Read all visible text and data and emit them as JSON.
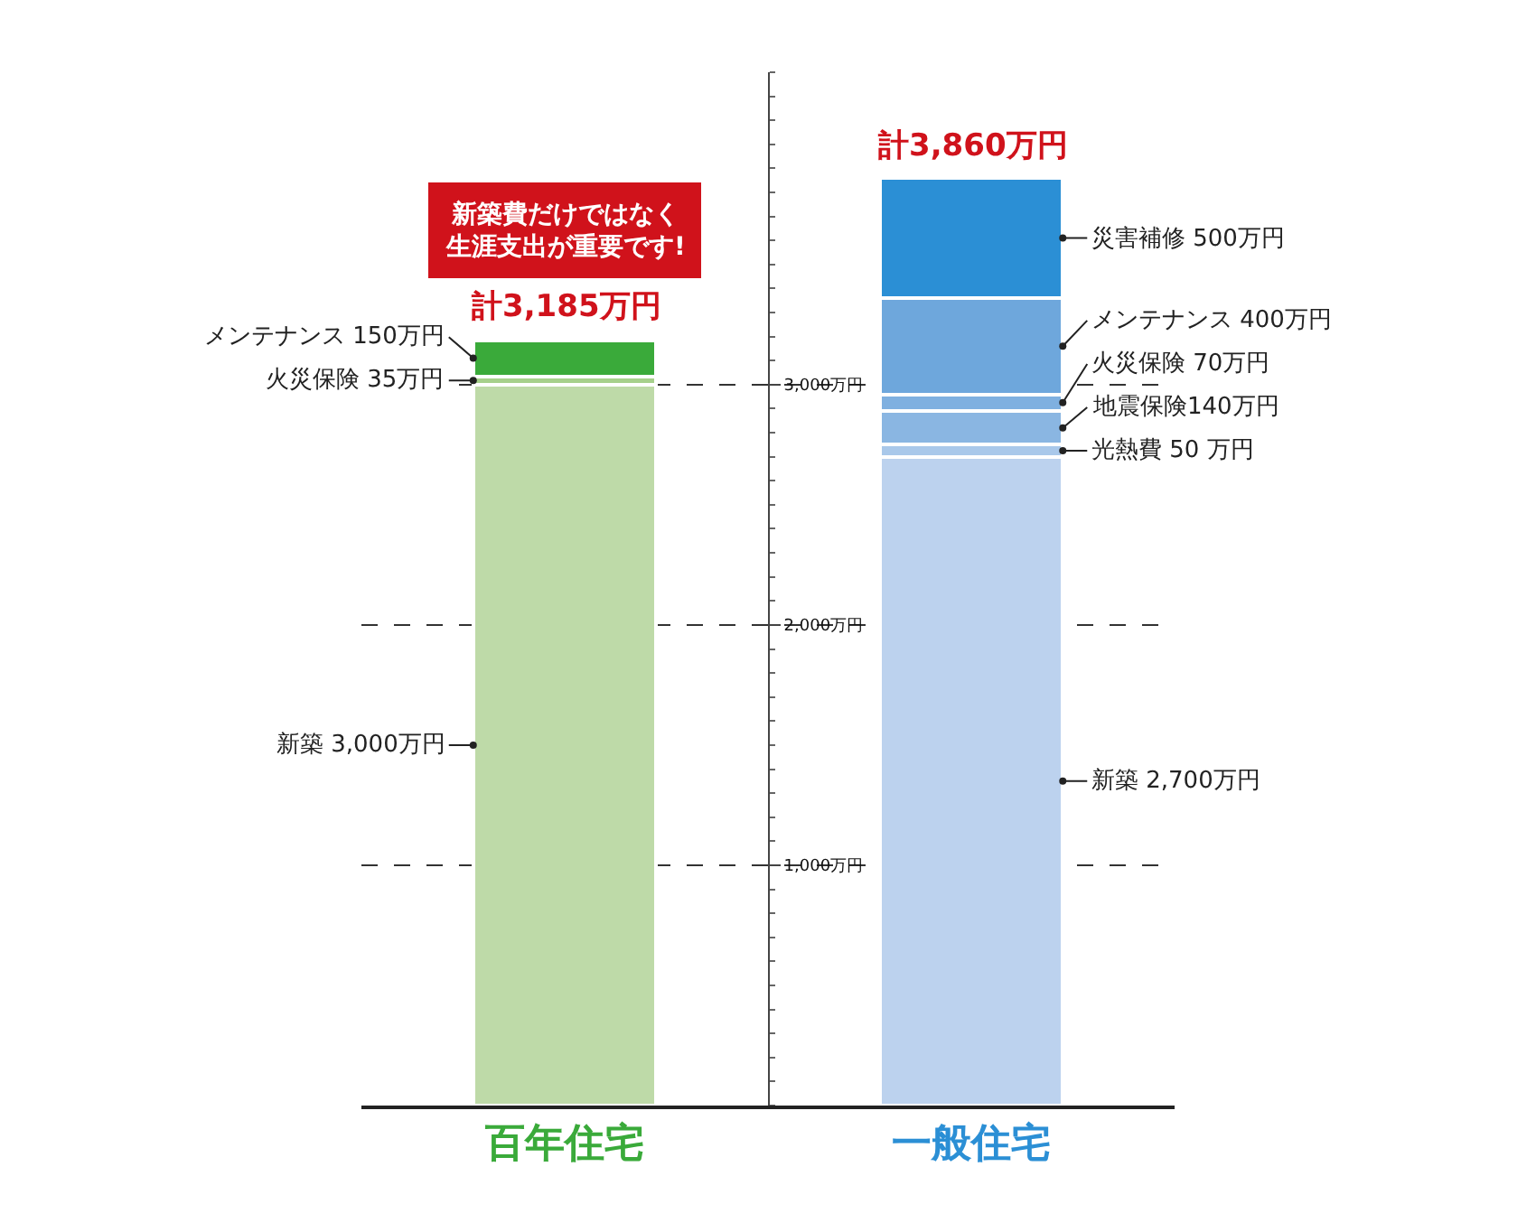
{
  "chart_data": {
    "type": "bar",
    "stacked": true,
    "categories": [
      "百年住宅",
      "一般住宅"
    ],
    "series": [
      {
        "colors": [
          "#bedaa8",
          "#bcd2ee"
        ],
        "values": [
          3000,
          2700
        ],
        "value_labels": [
          "新築 3,000万円",
          "新築 2,700万円"
        ]
      },
      {
        "colors": [
          "#bedaa8",
          "#a9c8ea"
        ],
        "values": [
          null,
          50
        ],
        "value_labels": [
          null,
          "光熱費 50 万円"
        ]
      },
      {
        "colors": [
          "#bedaa8",
          "#8ab6e2"
        ],
        "values": [
          null,
          140
        ],
        "value_labels": [
          null,
          "地震保険140万円"
        ]
      },
      {
        "colors": [
          "#a6d08b",
          "#7fb0e0"
        ],
        "values": [
          35,
          70
        ],
        "value_labels": [
          "火災保険 35万円",
          "火災保険 70万円"
        ]
      },
      {
        "colors": [
          "#3aaa3a",
          "#6ea7dc"
        ],
        "values": [
          150,
          400
        ],
        "value_labels": [
          "メンテナンス 150万円",
          "メンテナンス 400万円"
        ]
      },
      {
        "colors": [
          "#bedaa8",
          "#2b8fd5"
        ],
        "values": [
          null,
          500
        ],
        "value_labels": [
          null,
          "災害補修 500万円"
        ]
      }
    ],
    "totals": [
      "計3,185万円",
      "計3,860万円"
    ],
    "annotations": [
      "新築費だけではなく生涯支出が重要です!"
    ],
    "ylim": [
      0,
      4300
    ],
    "yticks": [
      {
        "value": 1000,
        "label": "1,000万円"
      },
      {
        "value": 2000,
        "label": "2,000万円"
      },
      {
        "value": 3000,
        "label": "3,000万円"
      }
    ],
    "grid": "y"
  }
}
